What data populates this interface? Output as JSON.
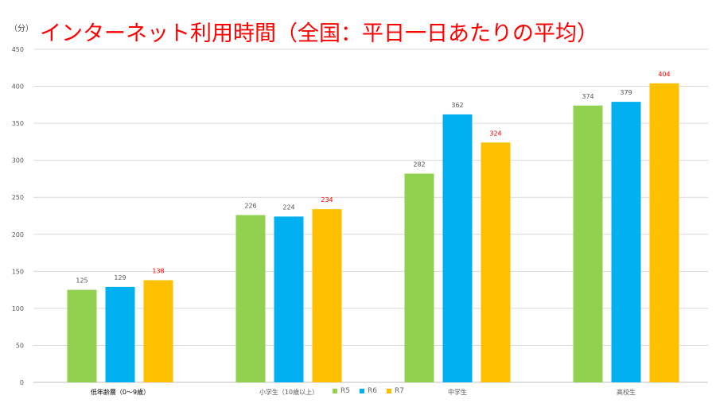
{
  "chart_data": {
    "type": "bar",
    "title": "インターネット利用時間（全国：平日一日あたりの平均）",
    "unit_label": "（分）",
    "categories": [
      "低年齢層（0〜9歳）",
      "小学生（10歳以上）",
      "中学生",
      "高校生"
    ],
    "series": [
      {
        "name": "R5",
        "values": [
          125,
          226,
          282,
          374
        ],
        "color": "#92d050",
        "label_color": "#555555"
      },
      {
        "name": "R6",
        "values": [
          129,
          224,
          362,
          379
        ],
        "color": "#00b0f0",
        "label_color": "#555555"
      },
      {
        "name": "R7",
        "values": [
          138,
          234,
          324,
          404
        ],
        "color": "#ffc000",
        "label_color": "#ff0000"
      }
    ],
    "ylim": [
      0,
      450
    ],
    "yticks": [
      0,
      50,
      100,
      150,
      200,
      250,
      300,
      350,
      400,
      450
    ],
    "grid": true,
    "legend_position": "bottom"
  }
}
